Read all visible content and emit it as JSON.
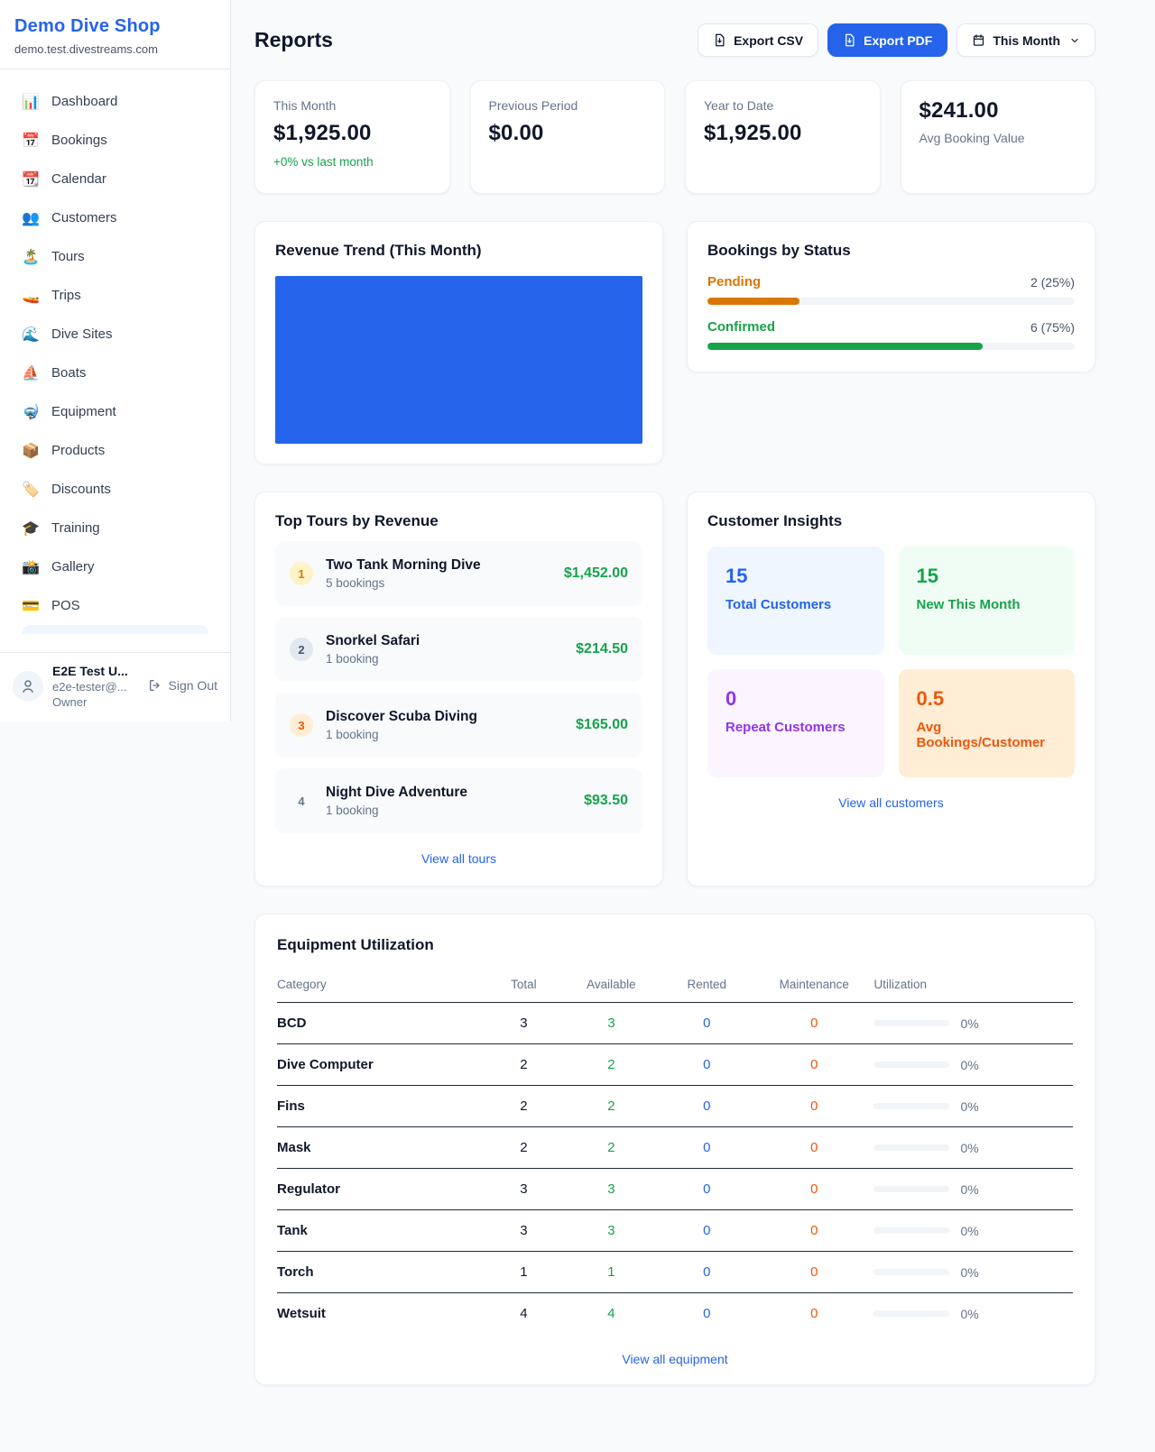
{
  "colors": {
    "accent_blue": "#2563eb",
    "green": "#16a34a",
    "amber": "#d97706",
    "orange": "#ea580c",
    "purple": "#9333ea",
    "chart_bar_blue": "#2563eb"
  },
  "sidebar": {
    "shop_name": "Demo Dive Shop",
    "shop_domain": "demo.test.divestreams.com",
    "items": [
      {
        "icon": "bar-chart-icon",
        "glyph": "📊",
        "label": "Dashboard"
      },
      {
        "icon": "calendar-icon",
        "glyph": "📅",
        "label": "Bookings"
      },
      {
        "icon": "tear-off-calendar-icon",
        "glyph": "📆",
        "label": "Calendar"
      },
      {
        "icon": "people-icon",
        "glyph": "👥",
        "label": "Customers"
      },
      {
        "icon": "island-icon",
        "glyph": "🏝️",
        "label": "Tours"
      },
      {
        "icon": "speedboat-icon",
        "glyph": "🚤",
        "label": "Trips"
      },
      {
        "icon": "wave-icon",
        "glyph": "🌊",
        "label": "Dive Sites"
      },
      {
        "icon": "sailboat-icon",
        "glyph": "⛵",
        "label": "Boats"
      },
      {
        "icon": "dive-mask-icon",
        "glyph": "🤿",
        "label": "Equipment"
      },
      {
        "icon": "package-icon",
        "glyph": "📦",
        "label": "Products"
      },
      {
        "icon": "tag-icon",
        "glyph": "🏷️",
        "label": "Discounts"
      },
      {
        "icon": "graduation-cap-icon",
        "glyph": "🎓",
        "label": "Training"
      },
      {
        "icon": "camera-icon",
        "glyph": "📸",
        "label": "Gallery"
      },
      {
        "icon": "credit-card-icon",
        "glyph": "💳",
        "label": "POS"
      }
    ],
    "user": {
      "name": "E2E Test U...",
      "email": "e2e-tester@...",
      "role": "Owner",
      "sign_out_label": "Sign Out"
    }
  },
  "header": {
    "title": "Reports",
    "export_csv_label": "Export CSV",
    "export_pdf_label": "Export PDF",
    "period_label": "This Month"
  },
  "stats": [
    {
      "label": "This Month",
      "value": "$1,925.00",
      "delta": "+0% vs last month"
    },
    {
      "label": "Previous Period",
      "value": "$0.00"
    },
    {
      "label": "Year to Date",
      "value": "$1,925.00"
    },
    {
      "label": "Avg Booking Value",
      "value": "$241.00"
    }
  ],
  "chart_data": {
    "type": "bar",
    "title": "Revenue Trend (This Month)",
    "categories": [
      "This Month"
    ],
    "values": [
      1925
    ],
    "bar_color": "#2563eb",
    "axes_visible": false
  },
  "revenue_trend": {
    "title": "Revenue Trend (This Month)"
  },
  "bookings_by_status": {
    "title": "Bookings by Status",
    "rows": [
      {
        "label": "Pending",
        "count_text": "2 (25%)",
        "count": 2,
        "pct": 25,
        "color": "#d97706"
      },
      {
        "label": "Confirmed",
        "count_text": "6 (75%)",
        "count": 6,
        "pct": 75,
        "color": "#16a34a"
      }
    ]
  },
  "top_tours": {
    "title": "Top Tours by Revenue",
    "rows": [
      {
        "rank": "1",
        "name": "Two Tank Morning Dive",
        "bookings": "5 bookings",
        "revenue": "$1,452.00"
      },
      {
        "rank": "2",
        "name": "Snorkel Safari",
        "bookings": "1 booking",
        "revenue": "$214.50"
      },
      {
        "rank": "3",
        "name": "Discover Scuba Diving",
        "bookings": "1 booking",
        "revenue": "$165.00"
      },
      {
        "rank": "4",
        "name": "Night Dive Adventure",
        "bookings": "1 booking",
        "revenue": "$93.50"
      }
    ],
    "view_all": "View all tours"
  },
  "customer_insights": {
    "title": "Customer Insights",
    "tiles": [
      {
        "value": "15",
        "label": "Total Customers",
        "color": "#2563eb"
      },
      {
        "value": "15",
        "label": "New This Month",
        "color": "#16a34a"
      },
      {
        "value": "0",
        "label": "Repeat Customers",
        "color": "#9333ea"
      },
      {
        "value": "0.5",
        "label": "Avg Bookings/Customer",
        "color": "#ea580c"
      }
    ],
    "view_all": "View all customers"
  },
  "equipment": {
    "title": "Equipment Utilization",
    "columns": [
      "Category",
      "Total",
      "Available",
      "Rented",
      "Maintenance",
      "Utilization"
    ],
    "rows": [
      {
        "category": "BCD",
        "total": "3",
        "available": "3",
        "rented": "0",
        "maintenance": "0",
        "utilization_text": "0%",
        "utilization_pct": 0
      },
      {
        "category": "Dive Computer",
        "total": "2",
        "available": "2",
        "rented": "0",
        "maintenance": "0",
        "utilization_text": "0%",
        "utilization_pct": 0
      },
      {
        "category": "Fins",
        "total": "2",
        "available": "2",
        "rented": "0",
        "maintenance": "0",
        "utilization_text": "0%",
        "utilization_pct": 0
      },
      {
        "category": "Mask",
        "total": "2",
        "available": "2",
        "rented": "0",
        "maintenance": "0",
        "utilization_text": "0%",
        "utilization_pct": 0
      },
      {
        "category": "Regulator",
        "total": "3",
        "available": "3",
        "rented": "0",
        "maintenance": "0",
        "utilization_text": "0%",
        "utilization_pct": 0
      },
      {
        "category": "Tank",
        "total": "3",
        "available": "3",
        "rented": "0",
        "maintenance": "0",
        "utilization_text": "0%",
        "utilization_pct": 0
      },
      {
        "category": "Torch",
        "total": "1",
        "available": "1",
        "rented": "0",
        "maintenance": "0",
        "utilization_text": "0%",
        "utilization_pct": 0
      },
      {
        "category": "Wetsuit",
        "total": "4",
        "available": "4",
        "rented": "0",
        "maintenance": "0",
        "utilization_text": "0%",
        "utilization_pct": 0
      }
    ],
    "view_all": "View all equipment"
  }
}
